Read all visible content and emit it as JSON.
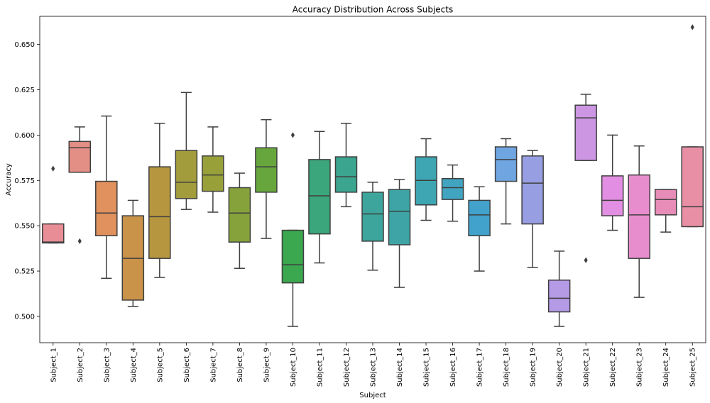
{
  "chart_data": {
    "type": "box",
    "title": "Accuracy Distribution Across Subjects",
    "xlabel": "Subject",
    "ylabel": "Accuracy",
    "ylim": [
      0.4855,
      0.6655
    ],
    "yticks": [
      0.5,
      0.525,
      0.55,
      0.575,
      0.6,
      0.625,
      0.65
    ],
    "ytick_labels": [
      "0.500",
      "0.525",
      "0.550",
      "0.575",
      "0.600",
      "0.625",
      "0.650"
    ],
    "grid": false,
    "categories": [
      "Subject_1",
      "Subject_2",
      "Subject_3",
      "Subject_4",
      "Subject_5",
      "Subject_6",
      "Subject_7",
      "Subject_8",
      "Subject_9",
      "Subject_10",
      "Subject_11",
      "Subject_12",
      "Subject_13",
      "Subject_14",
      "Subject_15",
      "Subject_16",
      "Subject_17",
      "Subject_18",
      "Subject_19",
      "Subject_20",
      "Subject_21",
      "Subject_22",
      "Subject_23",
      "Subject_24",
      "Subject_25"
    ],
    "colors": [
      "#e88d96",
      "#e48f85",
      "#e0915e",
      "#c9934a",
      "#b6963e",
      "#a39c3c",
      "#98a03a",
      "#86a23b",
      "#67a63c",
      "#3ba74f",
      "#3ba67b",
      "#3ca58f",
      "#3da59b",
      "#3ea4a5",
      "#3ea6b2",
      "#41a5c1",
      "#42a2cc",
      "#6fa6e1",
      "#989ee2",
      "#b59ae6",
      "#cc96e3",
      "#e28ee2",
      "#e78dcd",
      "#e88cb8",
      "#e88fa6"
    ],
    "boxes": [
      {
        "whislo": 0.5405,
        "q1": 0.5405,
        "med": 0.541,
        "q3": 0.551,
        "whishi": 0.551,
        "fliers": [
          0.5815
        ]
      },
      {
        "whislo": 0.5795,
        "q1": 0.5795,
        "med": 0.593,
        "q3": 0.5965,
        "whishi": 0.6045,
        "fliers": [
          0.5415
        ]
      },
      {
        "whislo": 0.521,
        "q1": 0.5445,
        "med": 0.557,
        "q3": 0.5745,
        "whishi": 0.6105,
        "fliers": []
      },
      {
        "whislo": 0.5055,
        "q1": 0.509,
        "med": 0.532,
        "q3": 0.5555,
        "whishi": 0.564,
        "fliers": []
      },
      {
        "whislo": 0.5215,
        "q1": 0.532,
        "med": 0.555,
        "q3": 0.5825,
        "whishi": 0.6065,
        "fliers": []
      },
      {
        "whislo": 0.559,
        "q1": 0.565,
        "med": 0.574,
        "q3": 0.5915,
        "whishi": 0.6235,
        "fliers": []
      },
      {
        "whislo": 0.5575,
        "q1": 0.569,
        "med": 0.578,
        "q3": 0.5885,
        "whishi": 0.6045,
        "fliers": []
      },
      {
        "whislo": 0.5265,
        "q1": 0.541,
        "med": 0.557,
        "q3": 0.571,
        "whishi": 0.579,
        "fliers": []
      },
      {
        "whislo": 0.543,
        "q1": 0.5685,
        "med": 0.5825,
        "q3": 0.593,
        "whishi": 0.6085,
        "fliers": []
      },
      {
        "whislo": 0.4945,
        "q1": 0.5185,
        "med": 0.5285,
        "q3": 0.5475,
        "whishi": 0.5475,
        "fliers": [
          0.6
        ]
      },
      {
        "whislo": 0.5295,
        "q1": 0.5455,
        "med": 0.5665,
        "q3": 0.5865,
        "whishi": 0.602,
        "fliers": []
      },
      {
        "whislo": 0.5605,
        "q1": 0.5685,
        "med": 0.577,
        "q3": 0.588,
        "whishi": 0.6065,
        "fliers": []
      },
      {
        "whislo": 0.5255,
        "q1": 0.5415,
        "med": 0.5565,
        "q3": 0.5685,
        "whishi": 0.574,
        "fliers": []
      },
      {
        "whislo": 0.516,
        "q1": 0.5395,
        "med": 0.558,
        "q3": 0.57,
        "whishi": 0.5755,
        "fliers": []
      },
      {
        "whislo": 0.553,
        "q1": 0.5615,
        "med": 0.575,
        "q3": 0.588,
        "whishi": 0.598,
        "fliers": []
      },
      {
        "whislo": 0.5525,
        "q1": 0.5645,
        "med": 0.571,
        "q3": 0.576,
        "whishi": 0.5835,
        "fliers": []
      },
      {
        "whislo": 0.525,
        "q1": 0.5445,
        "med": 0.556,
        "q3": 0.564,
        "whishi": 0.5715,
        "fliers": []
      },
      {
        "whislo": 0.551,
        "q1": 0.5745,
        "med": 0.5865,
        "q3": 0.5935,
        "whishi": 0.598,
        "fliers": []
      },
      {
        "whislo": 0.527,
        "q1": 0.551,
        "med": 0.5735,
        "q3": 0.5885,
        "whishi": 0.5915,
        "fliers": []
      },
      {
        "whislo": 0.4945,
        "q1": 0.5025,
        "med": 0.51,
        "q3": 0.52,
        "whishi": 0.536,
        "fliers": []
      },
      {
        "whislo": 0.586,
        "q1": 0.586,
        "med": 0.6095,
        "q3": 0.6165,
        "whishi": 0.6225,
        "fliers": [
          0.531
        ]
      },
      {
        "whislo": 0.5475,
        "q1": 0.5555,
        "med": 0.564,
        "q3": 0.5775,
        "whishi": 0.6,
        "fliers": []
      },
      {
        "whislo": 0.5105,
        "q1": 0.532,
        "med": 0.556,
        "q3": 0.578,
        "whishi": 0.594,
        "fliers": []
      },
      {
        "whislo": 0.5465,
        "q1": 0.556,
        "med": 0.5645,
        "q3": 0.57,
        "whishi": 0.57,
        "fliers": []
      },
      {
        "whislo": 0.5495,
        "q1": 0.5495,
        "med": 0.5605,
        "q3": 0.5935,
        "whishi": 0.5935,
        "fliers": [
          0.6595
        ]
      }
    ]
  }
}
